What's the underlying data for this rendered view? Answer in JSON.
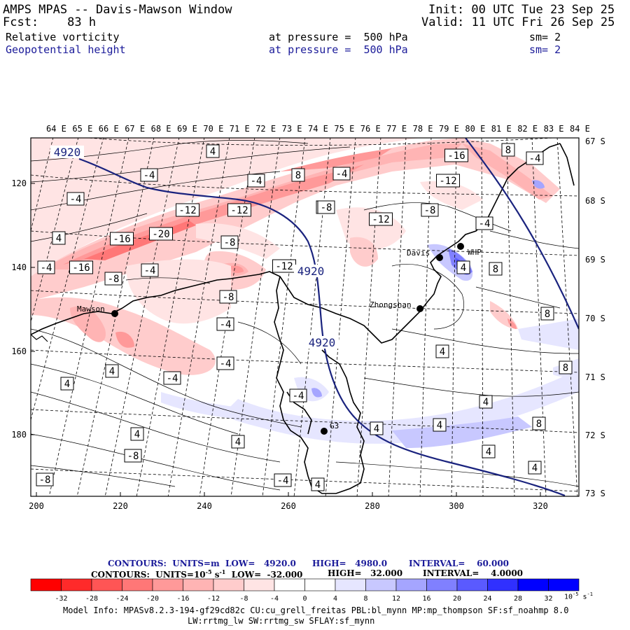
{
  "header": {
    "title": "AMPS MPAS -- Davis-Mawson Window",
    "forecast": "Fcst:    83 h",
    "init": "Init: 00 UTC Tue 23 Sep 25",
    "valid": "Valid: 11 UTC Fri 26 Sep 25",
    "field1": {
      "name": "Relative vorticity",
      "pressure": "at pressure =  500 hPa",
      "smooth": "sm= 2"
    },
    "field2": {
      "name": "Geopotential height",
      "pressure": "at pressure =  500 hPa",
      "smooth": "sm= 2"
    }
  },
  "map": {
    "lon_labels": [
      "64 E",
      "65 E",
      "66 E",
      "67 E",
      "68 E",
      "69 E",
      "70 E",
      "71 E",
      "72 E",
      "73 E",
      "74 E",
      "75 E",
      "76 E",
      "77 E",
      "78 E",
      "79 E",
      "80 E",
      "81 E",
      "82 E",
      "83 E",
      "84 E"
    ],
    "lat_labels": [
      "67 S",
      "68 S",
      "69 S",
      "70 S",
      "71 S",
      "72 S",
      "73 S"
    ],
    "x_ticks": [
      "200",
      "220",
      "240",
      "260",
      "280",
      "300",
      "320"
    ],
    "y_ticks": [
      "120",
      "140",
      "160",
      "180"
    ],
    "stations": [
      {
        "name": "Mawson",
        "dot": true
      },
      {
        "name": "Davis",
        "dot": true
      },
      {
        "name": "WHP",
        "dot": true
      },
      {
        "name": "Zhongshan",
        "dot": true
      },
      {
        "name": "G3",
        "dot": true
      }
    ],
    "height_labels": [
      "4920",
      "4920",
      "4920"
    ],
    "vort_labels": [
      "-4",
      "-8",
      "-12",
      "-16",
      "-20",
      "-16",
      "-12",
      "-16",
      "-12",
      "-8",
      "-4",
      "-8",
      "-12",
      "-8",
      "-4",
      "4",
      "8",
      "4",
      "4",
      "8",
      "8",
      "8",
      "4",
      "4",
      "4",
      "-8",
      "-8",
      "-4",
      "-4",
      "-4",
      "-4",
      "-4",
      "4",
      "4",
      "-8",
      "-12",
      "8",
      "4",
      "4",
      "-4",
      "-4",
      "-8",
      "4",
      "-4",
      "-4",
      "4",
      "4",
      "-4",
      "4",
      "8",
      "4"
    ]
  },
  "footer": {
    "line1": {
      "prefix": "CONTOURS:  UNITS=m  LOW=   4920.0",
      "high": "HIGH=   4980.0",
      "interval": "INTERVAL=    60.000"
    },
    "line2": {
      "prefix": "CONTOURS:  UNITS=10",
      "exp": "-5",
      "mid": " s",
      "exp2": "-1",
      "low": "  LOW=  -32.000",
      "high": "HIGH=   32.000",
      "interval": "INTERVAL=    4.0000"
    },
    "colorbar": {
      "ticks": [
        "-32",
        "-28",
        "-24",
        "-20",
        "-16",
        "-12",
        "-8",
        "-4",
        "0",
        "4",
        "8",
        "12",
        "16",
        "20",
        "24",
        "28",
        "32"
      ],
      "unit": "10",
      "unit_exp": "-5",
      "unit_s": " s",
      "unit_exp2": "-1",
      "colors": [
        "#ff0000",
        "#ff2a2a",
        "#ff5555",
        "#ff7777",
        "#ff9999",
        "#ffb4b4",
        "#ffcccc",
        "#ffe4e4",
        "#ffffff",
        "#ffffff",
        "#e6e6ff",
        "#c8c8ff",
        "#a5a5ff",
        "#8080ff",
        "#5a5aff",
        "#3030ff",
        "#0000ff"
      ]
    },
    "model_info": "Model Info: MPASv8.2.3-194-gf29cd82c CU:cu_grell_freitas PBL:bl_mynn MP:mp_thompson SF:sf_noahmp 8.0",
    "model_info2": "LW:rrtmg_lw SW:rrtmg_sw SFLAY:sf_mynn"
  }
}
